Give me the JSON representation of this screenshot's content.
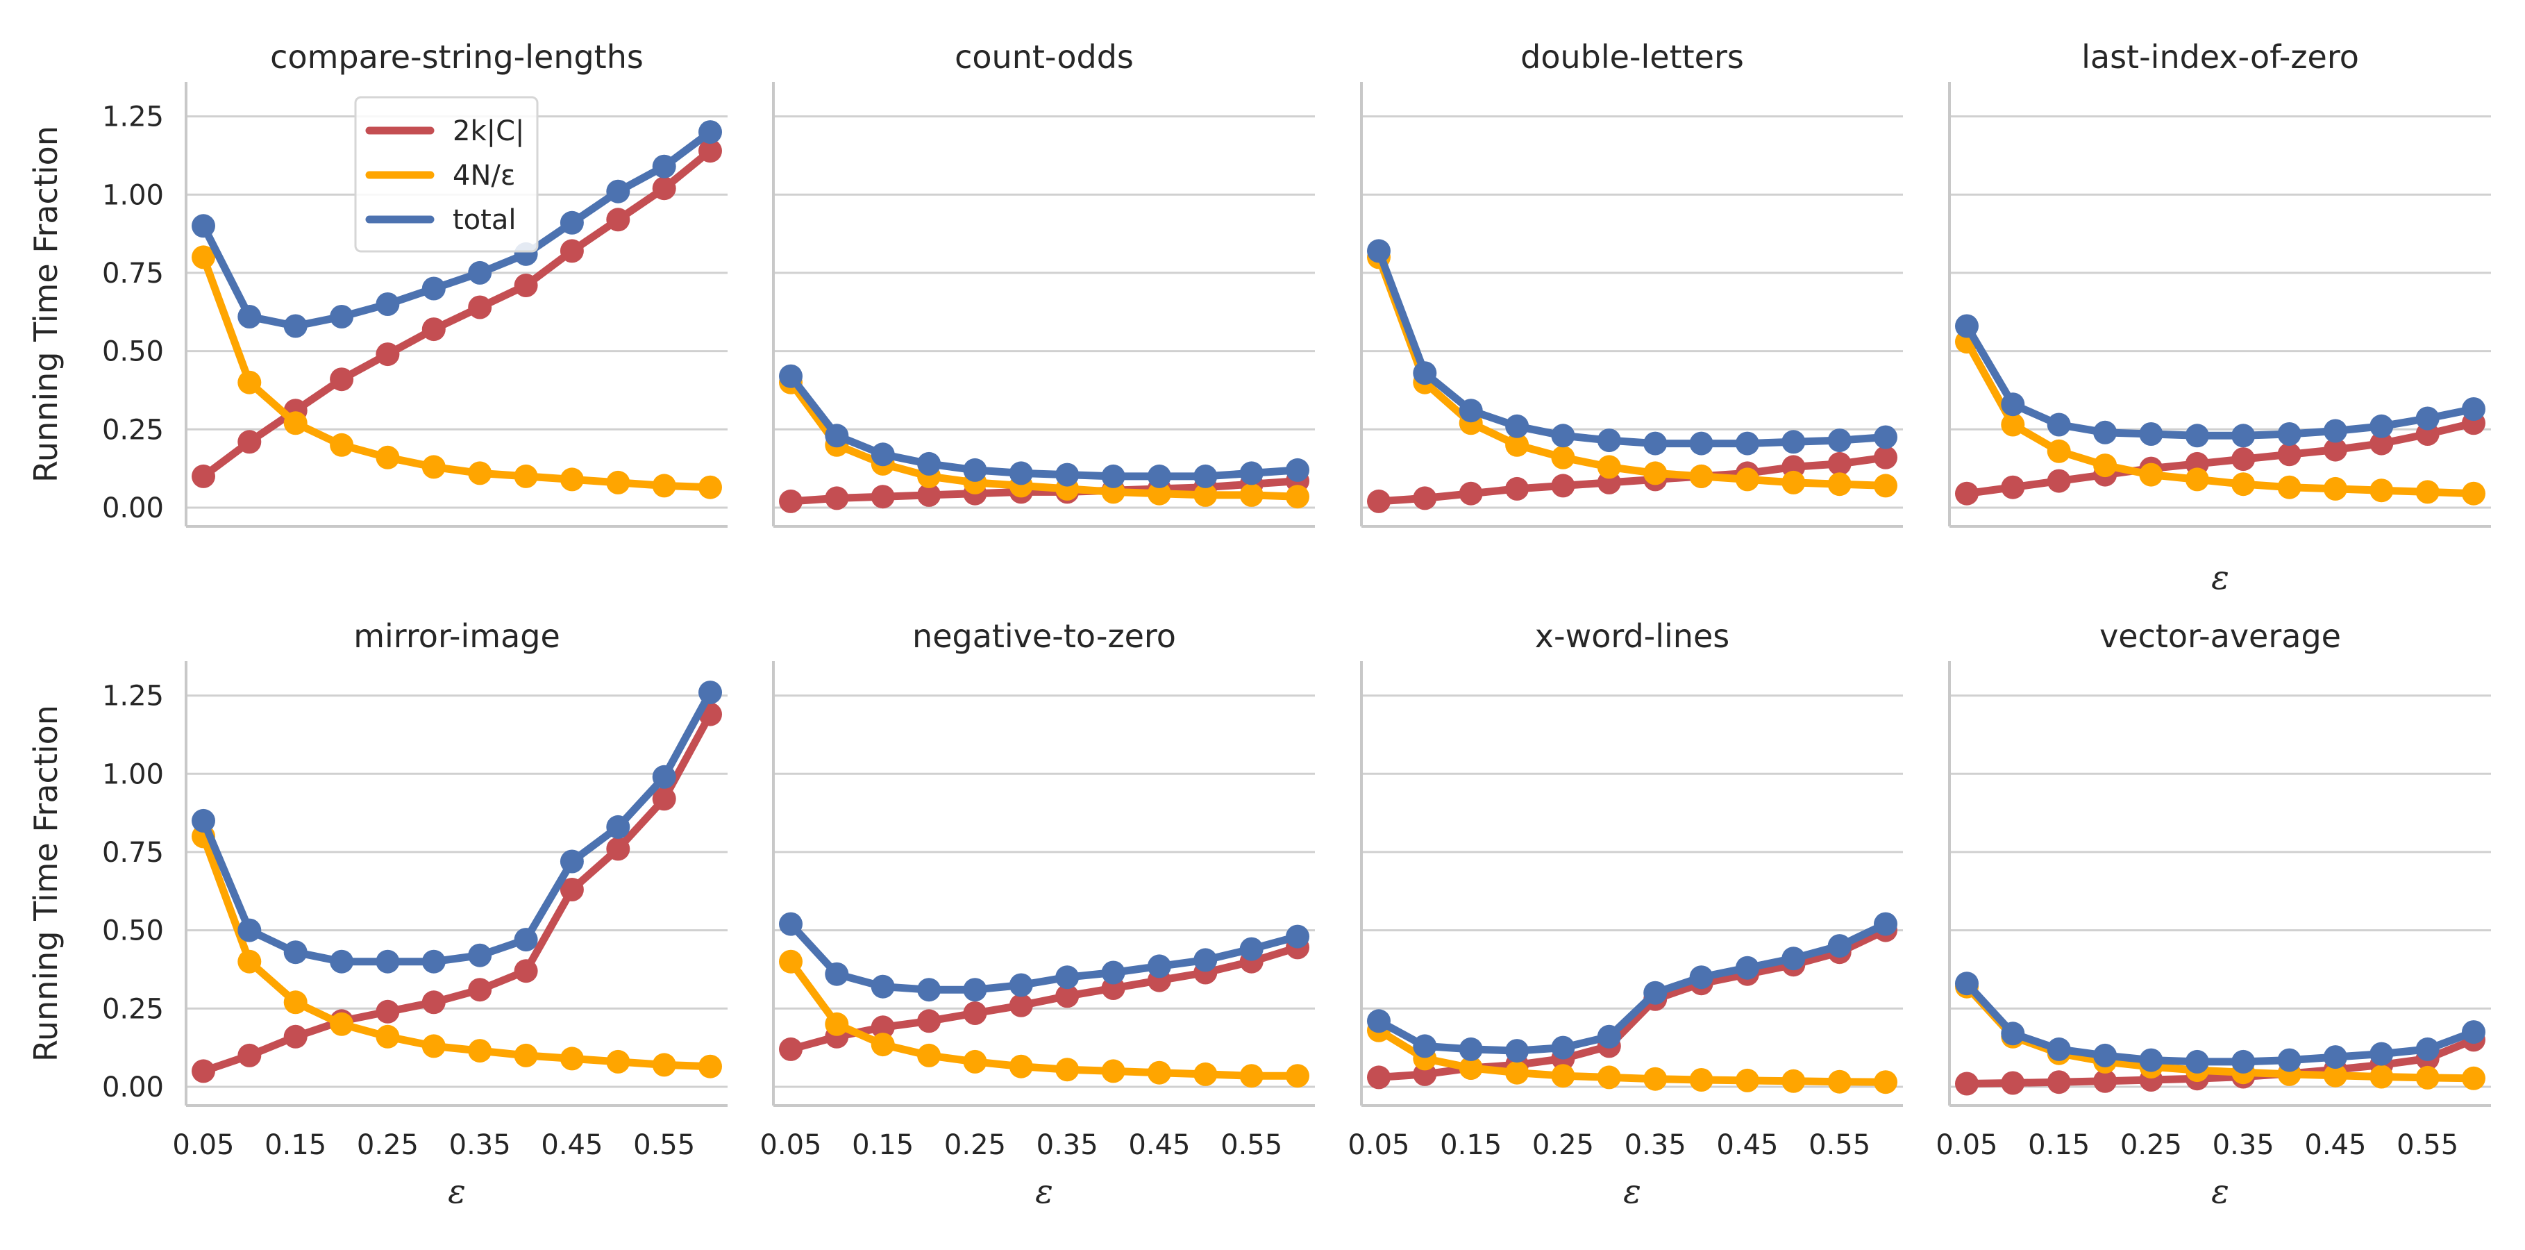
{
  "chart_data": {
    "type": "line",
    "ylabel": "Running Time Fraction",
    "xlabel": "ε",
    "x": [
      0.05,
      0.1,
      0.15,
      0.2,
      0.25,
      0.3,
      0.35,
      0.4,
      0.45,
      0.5,
      0.55,
      0.6
    ],
    "xticks": [
      "0.05",
      "0.15",
      "0.25",
      "0.35",
      "0.45",
      "0.55"
    ],
    "yticks": [
      "0.00",
      "0.25",
      "0.50",
      "0.75",
      "1.00",
      "1.25"
    ],
    "ylim": [
      -0.06,
      1.36
    ],
    "grid": true,
    "legend_location": "upper-center of first panel",
    "legend": [
      {
        "label": "2k|C|",
        "color": "#c44e52"
      },
      {
        "label": "4N/ε",
        "color": "#ffa500"
      },
      {
        "label": "total",
        "color": "#4c72b0"
      }
    ],
    "panels": [
      {
        "title": "compare-string-lengths",
        "series": [
          {
            "name": "2k|C|",
            "color": "#c44e52",
            "values": [
              0.1,
              0.21,
              0.31,
              0.41,
              0.49,
              0.57,
              0.64,
              0.71,
              0.82,
              0.92,
              1.02,
              1.14
            ]
          },
          {
            "name": "4N/ε",
            "color": "#ffa500",
            "values": [
              0.8,
              0.4,
              0.27,
              0.2,
              0.16,
              0.13,
              0.11,
              0.1,
              0.09,
              0.08,
              0.07,
              0.065
            ]
          },
          {
            "name": "total",
            "color": "#4c72b0",
            "values": [
              0.9,
              0.61,
              0.58,
              0.61,
              0.65,
              0.7,
              0.75,
              0.81,
              0.91,
              1.01,
              1.09,
              1.2
            ]
          }
        ]
      },
      {
        "title": "count-odds",
        "series": [
          {
            "name": "2k|C|",
            "color": "#c44e52",
            "values": [
              0.02,
              0.03,
              0.035,
              0.04,
              0.045,
              0.05,
              0.05,
              0.055,
              0.06,
              0.065,
              0.075,
              0.085
            ]
          },
          {
            "name": "4N/ε",
            "color": "#ffa500",
            "values": [
              0.4,
              0.2,
              0.14,
              0.1,
              0.08,
              0.07,
              0.06,
              0.05,
              0.045,
              0.04,
              0.04,
              0.035
            ]
          },
          {
            "name": "total",
            "color": "#4c72b0",
            "values": [
              0.42,
              0.23,
              0.17,
              0.14,
              0.12,
              0.11,
              0.105,
              0.1,
              0.1,
              0.1,
              0.11,
              0.12
            ]
          }
        ]
      },
      {
        "title": "double-letters",
        "series": [
          {
            "name": "2k|C|",
            "color": "#c44e52",
            "values": [
              0.02,
              0.03,
              0.045,
              0.06,
              0.07,
              0.08,
              0.09,
              0.1,
              0.11,
              0.13,
              0.14,
              0.16
            ]
          },
          {
            "name": "4N/ε",
            "color": "#ffa500",
            "values": [
              0.8,
              0.4,
              0.27,
              0.2,
              0.16,
              0.13,
              0.11,
              0.1,
              0.09,
              0.08,
              0.075,
              0.07
            ]
          },
          {
            "name": "total",
            "color": "#4c72b0",
            "values": [
              0.82,
              0.43,
              0.31,
              0.26,
              0.23,
              0.215,
              0.205,
              0.205,
              0.205,
              0.21,
              0.215,
              0.225
            ]
          }
        ]
      },
      {
        "title": "last-index-of-zero",
        "series": [
          {
            "name": "2k|C|",
            "color": "#c44e52",
            "values": [
              0.045,
              0.065,
              0.085,
              0.105,
              0.125,
              0.14,
              0.155,
              0.17,
              0.185,
              0.205,
              0.235,
              0.27
            ]
          },
          {
            "name": "4N/ε",
            "color": "#ffa500",
            "values": [
              0.53,
              0.265,
              0.18,
              0.135,
              0.105,
              0.09,
              0.075,
              0.065,
              0.06,
              0.055,
              0.05,
              0.045
            ]
          },
          {
            "name": "total",
            "color": "#4c72b0",
            "values": [
              0.58,
              0.33,
              0.265,
              0.24,
              0.235,
              0.23,
              0.23,
              0.235,
              0.245,
              0.26,
              0.285,
              0.315
            ]
          }
        ]
      },
      {
        "title": "mirror-image",
        "series": [
          {
            "name": "2k|C|",
            "color": "#c44e52",
            "values": [
              0.05,
              0.1,
              0.16,
              0.21,
              0.24,
              0.27,
              0.31,
              0.37,
              0.63,
              0.76,
              0.92,
              1.19
            ]
          },
          {
            "name": "4N/ε",
            "color": "#ffa500",
            "values": [
              0.8,
              0.4,
              0.27,
              0.2,
              0.16,
              0.13,
              0.115,
              0.1,
              0.09,
              0.08,
              0.07,
              0.065
            ]
          },
          {
            "name": "total",
            "color": "#4c72b0",
            "values": [
              0.85,
              0.5,
              0.43,
              0.4,
              0.4,
              0.4,
              0.42,
              0.47,
              0.72,
              0.83,
              0.99,
              1.26
            ]
          }
        ]
      },
      {
        "title": "negative-to-zero",
        "series": [
          {
            "name": "2k|C|",
            "color": "#c44e52",
            "values": [
              0.12,
              0.16,
              0.19,
              0.21,
              0.235,
              0.26,
              0.29,
              0.315,
              0.34,
              0.365,
              0.4,
              0.445
            ]
          },
          {
            "name": "4N/ε",
            "color": "#ffa500",
            "values": [
              0.4,
              0.2,
              0.135,
              0.1,
              0.08,
              0.065,
              0.055,
              0.05,
              0.045,
              0.04,
              0.035,
              0.035
            ]
          },
          {
            "name": "total",
            "color": "#4c72b0",
            "values": [
              0.52,
              0.36,
              0.32,
              0.31,
              0.31,
              0.325,
              0.35,
              0.365,
              0.385,
              0.405,
              0.44,
              0.48
            ]
          }
        ]
      },
      {
        "title": "x-word-lines",
        "series": [
          {
            "name": "2k|C|",
            "color": "#c44e52",
            "values": [
              0.03,
              0.04,
              0.06,
              0.07,
              0.09,
              0.13,
              0.28,
              0.33,
              0.36,
              0.39,
              0.43,
              0.5
            ]
          },
          {
            "name": "4N/ε",
            "color": "#ffa500",
            "values": [
              0.18,
              0.09,
              0.06,
              0.045,
              0.035,
              0.03,
              0.025,
              0.022,
              0.02,
              0.018,
              0.016,
              0.015
            ]
          },
          {
            "name": "total",
            "color": "#4c72b0",
            "values": [
              0.21,
              0.13,
              0.12,
              0.115,
              0.125,
              0.16,
              0.3,
              0.35,
              0.38,
              0.41,
              0.45,
              0.52
            ]
          }
        ]
      },
      {
        "title": "vector-average",
        "series": [
          {
            "name": "2k|C|",
            "color": "#c44e52",
            "values": [
              0.01,
              0.012,
              0.015,
              0.018,
              0.022,
              0.026,
              0.032,
              0.042,
              0.055,
              0.07,
              0.09,
              0.15
            ]
          },
          {
            "name": "4N/ε",
            "color": "#ffa500",
            "values": [
              0.32,
              0.16,
              0.107,
              0.08,
              0.064,
              0.053,
              0.046,
              0.04,
              0.036,
              0.032,
              0.029,
              0.027
            ]
          },
          {
            "name": "total",
            "color": "#4c72b0",
            "values": [
              0.33,
              0.17,
              0.12,
              0.1,
              0.085,
              0.08,
              0.08,
              0.085,
              0.095,
              0.105,
              0.12,
              0.175
            ]
          }
        ]
      }
    ]
  }
}
